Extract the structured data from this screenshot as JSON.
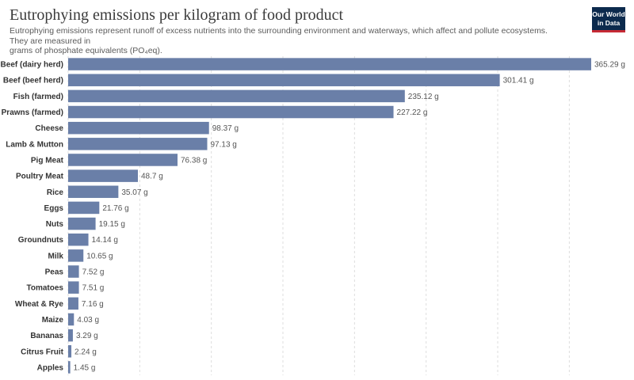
{
  "title": "Eutrophying emissions per kilogram of food product",
  "subtitle_line1": "Eutrophying emissions represent runoff of excess nutrients into the surrounding environment and waterways, which affect and pollute ecosystems. They are measured in",
  "subtitle_line2": "grams of phosphate equivalents (PO₄eq).",
  "logo": {
    "line1": "Our World",
    "line2": "in Data"
  },
  "colors": {
    "bar": "#6a7fa8",
    "grid": "#dddddd",
    "logo_bg": "#0c2a4d",
    "logo_accent": "#c62a35"
  },
  "chart_data": {
    "type": "bar",
    "orientation": "horizontal",
    "unit": "g",
    "categories": [
      "Beef (dairy herd)",
      "Beef (beef herd)",
      "Fish (farmed)",
      "Prawns (farmed)",
      "Cheese",
      "Lamb & Mutton",
      "Pig Meat",
      "Poultry Meat",
      "Rice",
      "Eggs",
      "Nuts",
      "Groundnuts",
      "Milk",
      "Peas",
      "Tomatoes",
      "Wheat & Rye",
      "Maize",
      "Bananas",
      "Citrus Fruit",
      "Apples"
    ],
    "values": [
      365.29,
      301.41,
      235.12,
      227.22,
      98.37,
      97.13,
      76.38,
      48.7,
      35.07,
      21.76,
      19.15,
      14.14,
      10.65,
      7.52,
      7.51,
      7.16,
      4.03,
      3.29,
      2.24,
      1.45
    ],
    "labels": [
      "365.29 g",
      "301.41 g",
      "235.12 g",
      "227.22 g",
      "98.37 g",
      "97.13 g",
      "76.38 g",
      "48.7 g",
      "35.07 g",
      "21.76 g",
      "19.15 g",
      "14.14 g",
      "10.65 g",
      "7.52 g",
      "7.51 g",
      "7.16 g",
      "4.03 g",
      "3.29 g",
      "2.24 g",
      "1.45 g"
    ],
    "xlim": [
      0,
      365.29
    ],
    "grid": true,
    "legend": "none"
  }
}
